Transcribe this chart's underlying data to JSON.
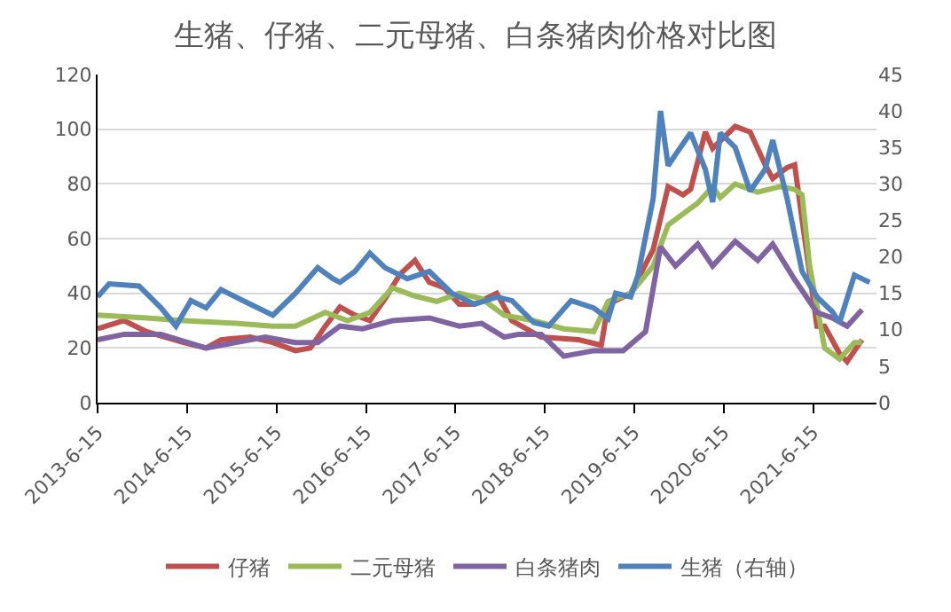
{
  "chart_data": {
    "type": "line",
    "title": "生猪、仔猪、二元母猪、白条猪肉价格对比图",
    "xlim": [
      "2013-06-15",
      "2022-03-01"
    ],
    "xticks": [
      {
        "value": "2013-06-15",
        "label": "2013-6-15"
      },
      {
        "value": "2014-06-15",
        "label": "2014-6-15"
      },
      {
        "value": "2015-06-15",
        "label": "2015-6-15"
      },
      {
        "value": "2016-06-15",
        "label": "2016-6-15"
      },
      {
        "value": "2017-06-15",
        "label": "2017-6-15"
      },
      {
        "value": "2018-06-15",
        "label": "2018-6-15"
      },
      {
        "value": "2019-06-15",
        "label": "2019-6-15"
      },
      {
        "value": "2020-06-15",
        "label": "2020-6-15"
      },
      {
        "value": "2021-06-15",
        "label": "2021-6-15"
      }
    ],
    "ylim": [
      0,
      120
    ],
    "yticks": [
      0,
      20,
      40,
      60,
      80,
      100,
      120
    ],
    "y2lim": [
      0,
      45
    ],
    "y2ticks": [
      0,
      5,
      10,
      15,
      20,
      25,
      30,
      35,
      40,
      45
    ],
    "grid": "y",
    "legend": "bottom",
    "line_style": "solid",
    "marker": "none",
    "series": [
      {
        "name": "仔猪",
        "color": "#c0504d",
        "x": [
          "2013-06-15",
          "2013-10",
          "2014-01",
          "2014-06",
          "2014-09",
          "2014-11",
          "2015-03",
          "2015-06",
          "2015-09",
          "2015-11",
          "2016-01",
          "2016-03",
          "2016-05",
          "2016-07",
          "2016-09",
          "2016-11",
          "2017-01",
          "2017-03",
          "2017-05",
          "2017-07",
          "2017-09",
          "2017-12",
          "2018-02",
          "2018-06",
          "2018-11",
          "2019-02",
          "2019-03",
          "2019-06",
          "2019-09",
          "2019-11",
          "2020-01",
          "2020-02",
          "2020-04",
          "2020-05",
          "2020-08",
          "2020-10",
          "2020-12",
          "2021-01",
          "2021-03",
          "2021-04",
          "2021-05",
          "2021-07",
          "2021-08",
          "2021-10",
          "2021-11",
          "2022-01"
        ],
        "values": [
          27,
          30,
          26,
          22,
          20,
          23,
          24,
          22,
          19,
          20,
          28,
          35,
          32,
          30,
          38,
          47,
          52,
          44,
          42,
          36,
          36,
          40,
          30,
          24,
          23,
          21,
          36,
          40,
          56,
          79,
          76,
          78,
          99,
          93,
          101,
          99,
          87,
          82,
          86,
          87,
          67,
          28,
          28,
          18,
          15,
          23
        ]
      },
      {
        "name": "二元母猪",
        "color": "#9bbb59",
        "x": [
          "2013-06-15",
          "2014-01",
          "2014-06",
          "2015-01",
          "2015-06",
          "2015-09",
          "2016-01",
          "2016-04",
          "2016-07",
          "2016-10",
          "2017-01",
          "2017-04",
          "2017-07",
          "2017-10",
          "2018-01",
          "2018-05",
          "2018-09",
          "2019-01",
          "2019-03",
          "2019-06",
          "2019-09",
          "2019-11",
          "2020-03",
          "2020-05",
          "2020-06",
          "2020-08",
          "2020-11",
          "2021-02",
          "2021-04",
          "2021-05",
          "2021-06",
          "2021-08",
          "2021-10",
          "2021-12",
          "2022-01"
        ],
        "values": [
          32,
          31,
          30,
          29,
          28,
          28,
          33,
          30,
          33,
          42,
          39,
          37,
          40,
          38,
          32,
          30,
          27,
          26,
          37,
          40,
          50,
          65,
          73,
          79,
          75,
          80,
          77,
          79,
          78,
          76,
          50,
          20,
          16,
          22,
          22
        ]
      },
      {
        "name": "白条猪肉",
        "color": "#8064a2",
        "x": [
          "2013-06-15",
          "2013-10",
          "2014-03",
          "2014-09",
          "2015-01",
          "2015-05",
          "2015-09",
          "2015-12",
          "2016-03",
          "2016-06",
          "2016-10",
          "2017-03",
          "2017-07",
          "2017-10",
          "2018-01",
          "2018-03",
          "2018-06",
          "2018-09",
          "2019-01",
          "2019-05",
          "2019-08",
          "2019-10",
          "2019-12",
          "2020-03",
          "2020-05",
          "2020-08",
          "2020-11",
          "2021-01",
          "2021-04",
          "2021-07",
          "2021-09",
          "2021-11",
          "2022-01"
        ],
        "values": [
          23,
          25,
          25,
          20,
          22,
          24,
          22,
          22,
          28,
          27,
          30,
          31,
          28,
          29,
          24,
          25,
          25,
          17,
          19,
          19,
          26,
          57,
          50,
          58,
          50,
          59,
          52,
          58,
          45,
          33,
          31,
          28,
          34
        ]
      },
      {
        "name": "生猪（右轴）",
        "color": "#4f81bd",
        "axis": "y2",
        "x": [
          "2013-06-15",
          "2013-08",
          "2013-12",
          "2014-03",
          "2014-05",
          "2014-07",
          "2014-09",
          "2014-11",
          "2015-03",
          "2015-06",
          "2015-09",
          "2015-12",
          "2016-02",
          "2016-03",
          "2016-05",
          "2016-07",
          "2016-09",
          "2016-12",
          "2017-03",
          "2017-06",
          "2017-09",
          "2017-12",
          "2018-02",
          "2018-05",
          "2018-07",
          "2018-10",
          "2019-01",
          "2019-03",
          "2019-04",
          "2019-06",
          "2019-07",
          "2019-09",
          "2019-10",
          "2019-11",
          "2019-12",
          "2020-02",
          "2020-04",
          "2020-05",
          "2020-06",
          "2020-08",
          "2020-10",
          "2020-12",
          "2021-01",
          "2021-03",
          "2021-05",
          "2021-07",
          "2021-09",
          "2021-10",
          "2021-12",
          "2022-02"
        ],
        "values": [
          14.5,
          16.3,
          16,
          13,
          10.5,
          14,
          13,
          15.5,
          13.5,
          12,
          15,
          18.5,
          17,
          16.5,
          18,
          20.5,
          18.5,
          17,
          18,
          15,
          13.5,
          14.5,
          14,
          11,
          10.5,
          14,
          13,
          11.5,
          15,
          14.5,
          17.5,
          28,
          40,
          32.5,
          34,
          37,
          32,
          27.5,
          37,
          35,
          29,
          32,
          36,
          28,
          18,
          14.5,
          12.5,
          11,
          17.5,
          16.5
        ]
      }
    ]
  }
}
